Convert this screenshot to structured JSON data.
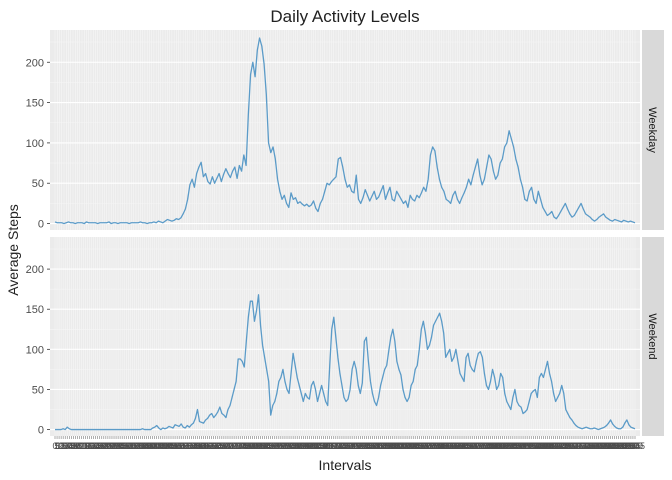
{
  "chart_data": {
    "type": "line",
    "title": "Daily Activity Levels",
    "xlabel": "Intervals",
    "ylabel": "Average Steps",
    "ylim": [
      -8,
      240
    ],
    "yticks": [
      0,
      50,
      100,
      150,
      200
    ],
    "series_color": "#5b9bc8",
    "panel_bg": "#ebebeb",
    "strip_bg": "#d9d9d9",
    "x_ticks_note": "288 five-minute interval tick labels (0 to 2355), overlapping and unreadable",
    "facets": [
      {
        "label": "Weekday",
        "values": [
          2,
          1,
          1,
          1,
          0,
          1,
          2,
          1,
          1,
          0,
          1,
          1,
          1,
          0,
          2,
          1,
          1,
          1,
          1,
          0,
          1,
          1,
          1,
          1,
          2,
          0,
          1,
          1,
          0,
          1,
          1,
          1,
          1,
          0,
          1,
          1,
          1,
          1,
          2,
          1,
          1,
          0,
          1,
          1,
          2,
          1,
          3,
          2,
          1,
          3,
          5,
          4,
          3,
          4,
          6,
          5,
          7,
          12,
          18,
          30,
          48,
          55,
          45,
          62,
          70,
          76,
          58,
          62,
          52,
          49,
          58,
          50,
          56,
          62,
          52,
          61,
          68,
          62,
          57,
          65,
          70,
          56,
          72,
          65,
          85,
          72,
          135,
          185,
          200,
          182,
          215,
          230,
          220,
          198,
          160,
          100,
          88,
          95,
          80,
          55,
          40,
          30,
          35,
          25,
          20,
          38,
          30,
          32,
          25,
          27,
          24,
          22,
          24,
          21,
          23,
          28,
          19,
          15,
          25,
          30,
          40,
          50,
          48,
          52,
          55,
          58,
          80,
          82,
          70,
          55,
          45,
          48,
          40,
          38,
          60,
          30,
          25,
          32,
          42,
          35,
          28,
          34,
          40,
          30,
          33,
          40,
          47,
          30,
          38,
          45,
          30,
          28,
          40,
          35,
          30,
          25,
          28,
          20,
          35,
          30,
          28,
          35,
          32,
          38,
          45,
          40,
          55,
          85,
          95,
          90,
          70,
          55,
          45,
          40,
          30,
          28,
          25,
          35,
          40,
          30,
          25,
          32,
          38,
          45,
          55,
          48,
          60,
          70,
          80,
          60,
          48,
          55,
          70,
          85,
          80,
          65,
          55,
          60,
          75,
          80,
          95,
          100,
          115,
          105,
          95,
          80,
          70,
          55,
          45,
          30,
          28,
          40,
          45,
          30,
          25,
          40,
          30,
          20,
          15,
          10,
          12,
          15,
          8,
          6,
          10,
          15,
          20,
          25,
          18,
          12,
          8,
          10,
          15,
          20,
          25,
          18,
          12,
          10,
          8,
          5,
          3,
          5,
          8,
          10,
          12,
          8,
          6,
          4,
          3,
          5,
          4,
          3,
          2,
          4,
          3,
          2,
          3,
          2,
          1
        ]
      },
      {
        "label": "Weekend",
        "values": [
          0,
          0,
          0,
          0,
          1,
          0,
          3,
          1,
          0,
          0,
          0,
          0,
          0,
          0,
          0,
          0,
          0,
          0,
          0,
          0,
          0,
          0,
          0,
          0,
          0,
          0,
          0,
          0,
          0,
          0,
          0,
          0,
          0,
          0,
          0,
          0,
          0,
          0,
          0,
          0,
          0,
          0,
          0,
          1,
          0,
          0,
          0,
          0,
          2,
          3,
          5,
          2,
          0,
          2,
          1,
          2,
          4,
          3,
          2,
          6,
          5,
          4,
          7,
          3,
          2,
          5,
          3,
          6,
          8,
          14,
          25,
          10,
          9,
          8,
          12,
          14,
          18,
          20,
          15,
          18,
          22,
          28,
          20,
          18,
          15,
          25,
          30,
          40,
          50,
          60,
          88,
          88,
          85,
          78,
          110,
          140,
          160,
          160,
          135,
          148,
          168,
          130,
          105,
          90,
          75,
          60,
          18,
          30,
          35,
          45,
          60,
          65,
          75,
          60,
          50,
          45,
          70,
          95,
          80,
          65,
          55,
          45,
          35,
          45,
          40,
          38,
          55,
          60,
          50,
          35,
          45,
          55,
          45,
          35,
          30,
          80,
          125,
          140,
          115,
          90,
          70,
          55,
          40,
          35,
          38,
          50,
          75,
          85,
          75,
          55,
          45,
          58,
          110,
          115,
          85,
          60,
          45,
          35,
          30,
          40,
          55,
          65,
          75,
          80,
          98,
          115,
          125,
          110,
          85,
          75,
          68,
          50,
          40,
          35,
          40,
          55,
          60,
          75,
          80,
          100,
          125,
          135,
          120,
          100,
          105,
          115,
          130,
          135,
          140,
          145,
          135,
          120,
          90,
          95,
          100,
          85,
          90,
          100,
          85,
          70,
          65,
          60,
          90,
          95,
          80,
          75,
          72,
          85,
          95,
          97,
          90,
          70,
          55,
          50,
          60,
          75,
          65,
          50,
          55,
          70,
          65,
          45,
          35,
          30,
          25,
          40,
          50,
          35,
          30,
          28,
          20,
          22,
          25,
          35,
          45,
          48,
          50,
          40,
          65,
          70,
          65,
          75,
          85,
          70,
          60,
          45,
          35,
          40,
          45,
          55,
          45,
          25,
          20,
          15,
          12,
          8,
          5,
          3,
          2,
          1,
          2,
          3,
          2,
          1,
          1,
          2,
          1,
          0,
          1,
          2,
          3,
          5,
          8,
          12,
          7,
          4,
          2,
          1,
          1,
          3,
          8,
          12,
          6,
          3,
          2,
          1
        ]
      }
    ]
  }
}
